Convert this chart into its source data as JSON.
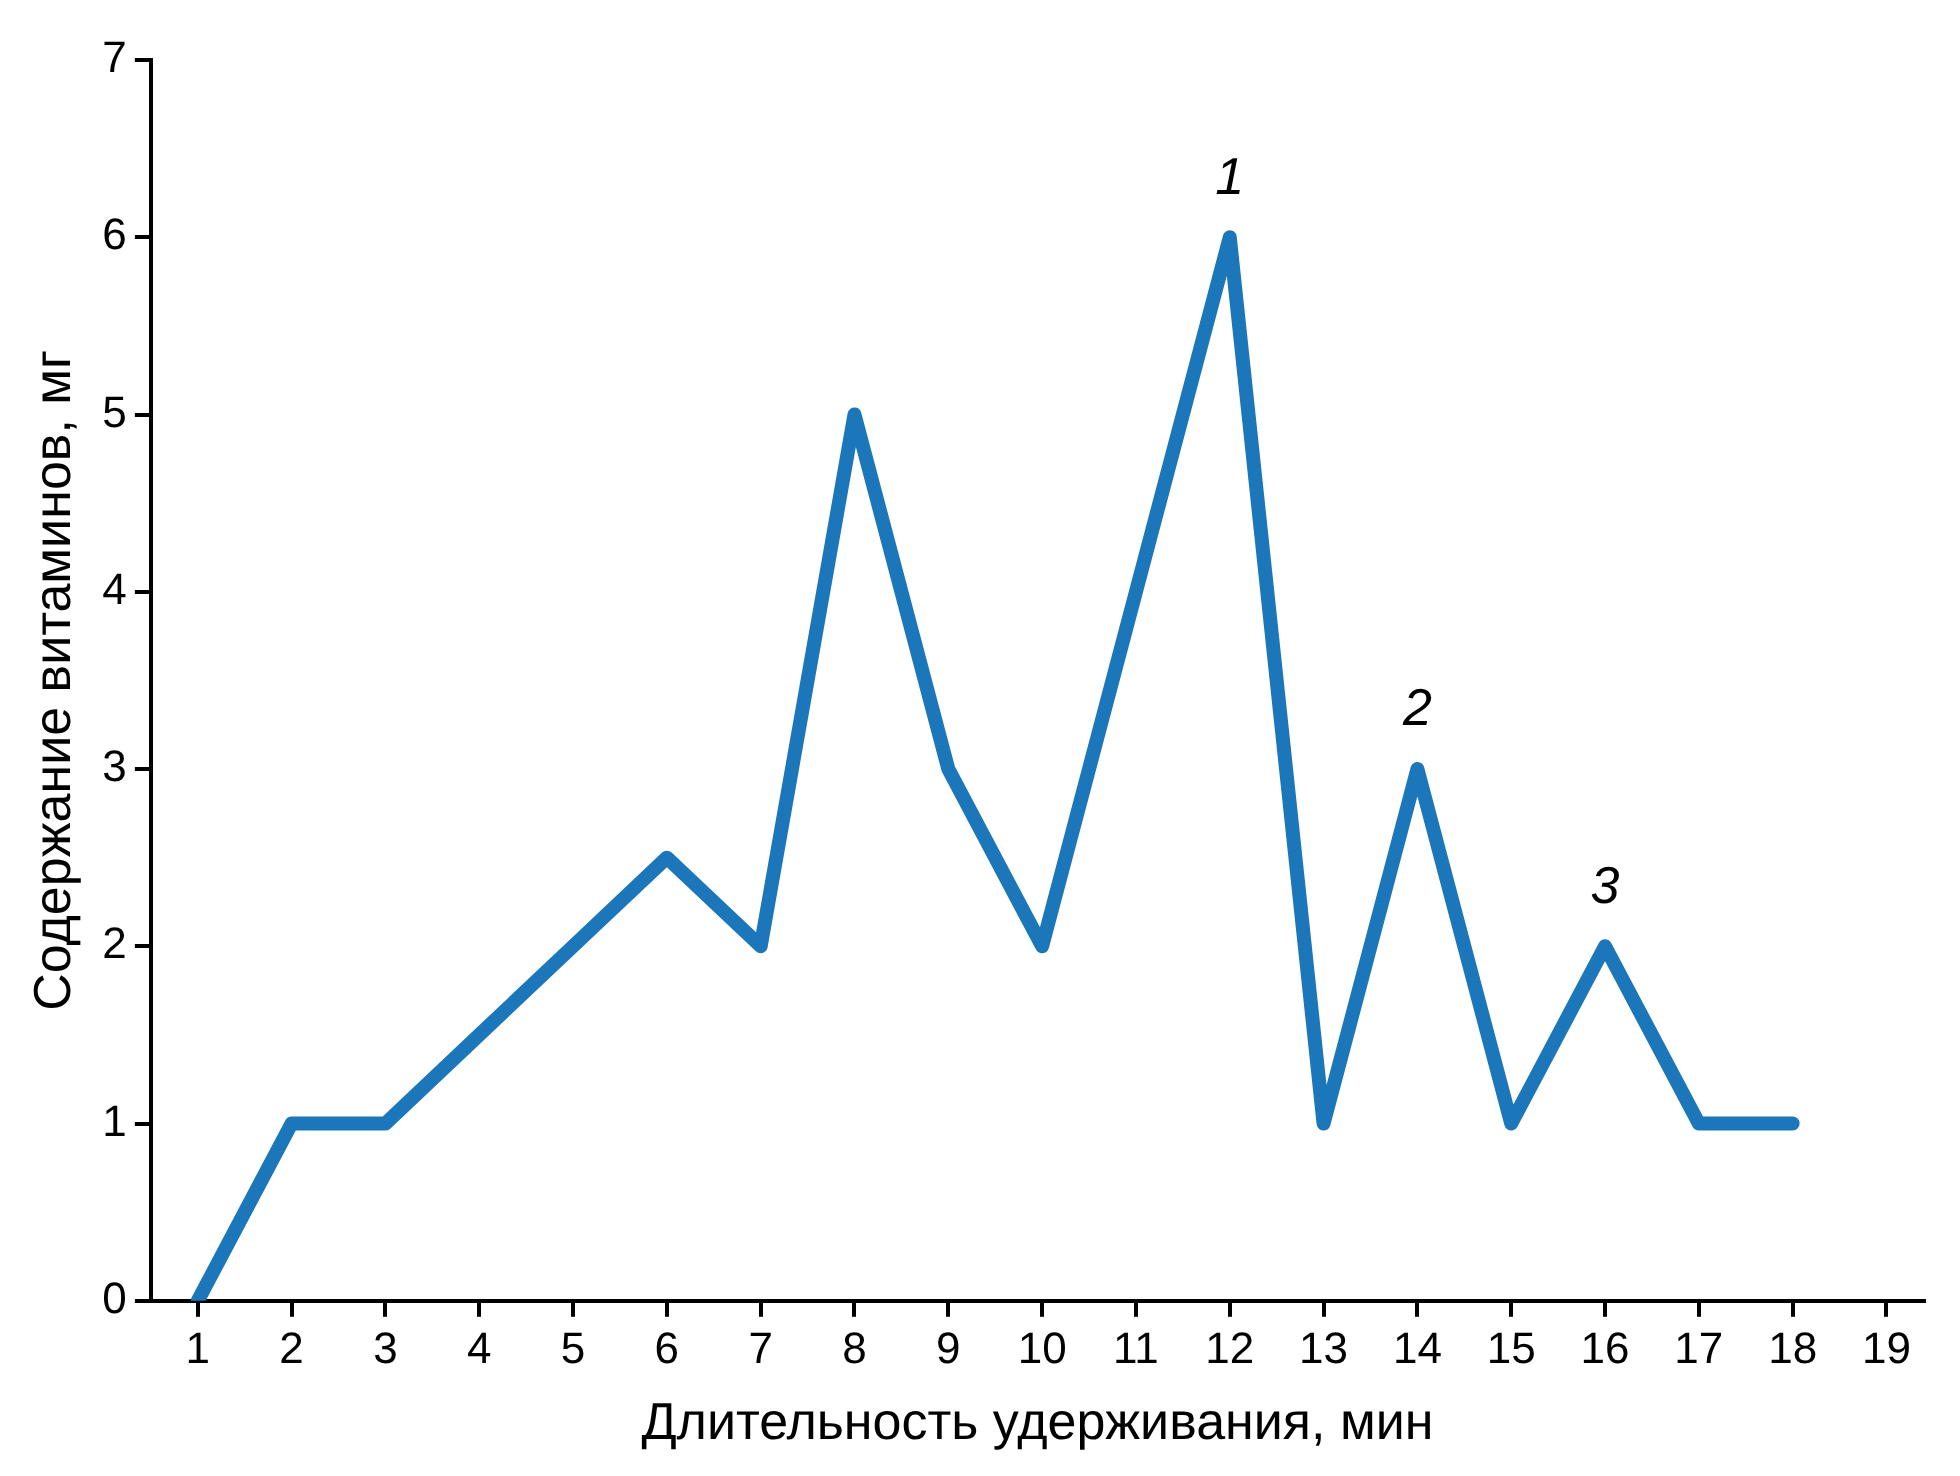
{
  "chart_data": {
    "type": "line",
    "xlabel": "Длительность удерживания, мин",
    "ylabel": "Содержание витаминов, мг",
    "x": [
      1,
      2,
      3,
      4,
      5,
      6,
      7,
      8,
      9,
      10,
      11,
      12,
      13,
      14,
      15,
      16,
      17,
      18
    ],
    "series": [
      {
        "color": "#1b77b9",
        "values": [
          0,
          1,
          1,
          1.5,
          2,
          2.5,
          2,
          5,
          3,
          2,
          4,
          6,
          1,
          3,
          1,
          2,
          1,
          1
        ]
      }
    ],
    "xlim": [
      0.5,
      19.4
    ],
    "xticks": [
      1,
      2,
      3,
      4,
      5,
      6,
      7,
      8,
      9,
      10,
      11,
      12,
      13,
      14,
      15,
      16,
      17,
      18,
      19
    ],
    "ylim": [
      0,
      7
    ],
    "yticks": [
      0,
      1,
      2,
      3,
      4,
      5,
      6,
      7
    ],
    "annotations": [
      {
        "text": "1",
        "x": 12,
        "y": 6
      },
      {
        "text": "2",
        "x": 14,
        "y": 3
      },
      {
        "text": "3",
        "x": 16,
        "y": 2
      }
    ],
    "grid": false,
    "legend": false,
    "marker": "none",
    "line_style": "solid"
  }
}
